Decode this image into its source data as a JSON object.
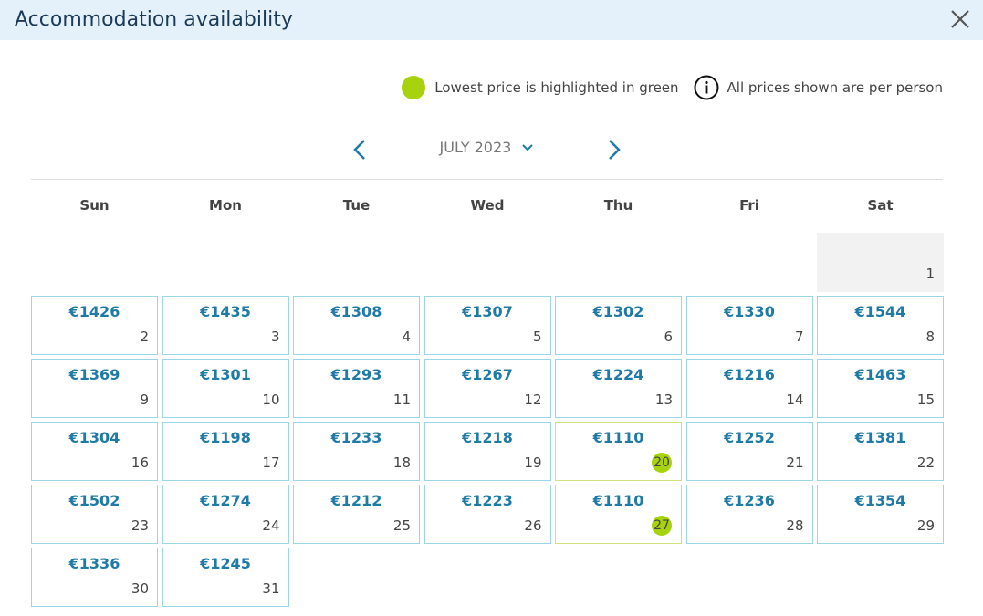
{
  "header": {
    "title": "Accommodation availability"
  },
  "legend": {
    "lowest": "Lowest price is highlighted in green",
    "info": "All prices shown are per person"
  },
  "month": "JULY 2023",
  "weekdays": [
    "Sun",
    "Mon",
    "Tue",
    "Wed",
    "Thu",
    "Fri",
    "Sat"
  ],
  "weeks": [
    [
      null,
      null,
      null,
      null,
      null,
      null,
      {
        "day": 1
      }
    ],
    [
      {
        "price": "€1426",
        "day": 2
      },
      {
        "price": "€1435",
        "day": 3
      },
      {
        "price": "€1308",
        "day": 4
      },
      {
        "price": "€1307",
        "day": 5
      },
      {
        "price": "€1302",
        "day": 6
      },
      {
        "price": "€1330",
        "day": 7
      },
      {
        "price": "€1544",
        "day": 8
      }
    ],
    [
      {
        "price": "€1369",
        "day": 9
      },
      {
        "price": "€1301",
        "day": 10
      },
      {
        "price": "€1293",
        "day": 11
      },
      {
        "price": "€1267",
        "day": 12
      },
      {
        "price": "€1224",
        "day": 13
      },
      {
        "price": "€1216",
        "day": 14
      },
      {
        "price": "€1463",
        "day": 15
      }
    ],
    [
      {
        "price": "€1304",
        "day": 16
      },
      {
        "price": "€1198",
        "day": 17
      },
      {
        "price": "€1233",
        "day": 18
      },
      {
        "price": "€1218",
        "day": 19
      },
      {
        "price": "€1110",
        "day": 20,
        "lowest": true
      },
      {
        "price": "€1252",
        "day": 21
      },
      {
        "price": "€1381",
        "day": 22
      }
    ],
    [
      {
        "price": "€1502",
        "day": 23
      },
      {
        "price": "€1274",
        "day": 24
      },
      {
        "price": "€1212",
        "day": 25
      },
      {
        "price": "€1223",
        "day": 26
      },
      {
        "price": "€1110",
        "day": 27,
        "lowest": true
      },
      {
        "price": "€1236",
        "day": 28
      },
      {
        "price": "€1354",
        "day": 29
      }
    ],
    [
      {
        "price": "€1336",
        "day": 30
      },
      {
        "price": "€1245",
        "day": 31
      }
    ]
  ]
}
